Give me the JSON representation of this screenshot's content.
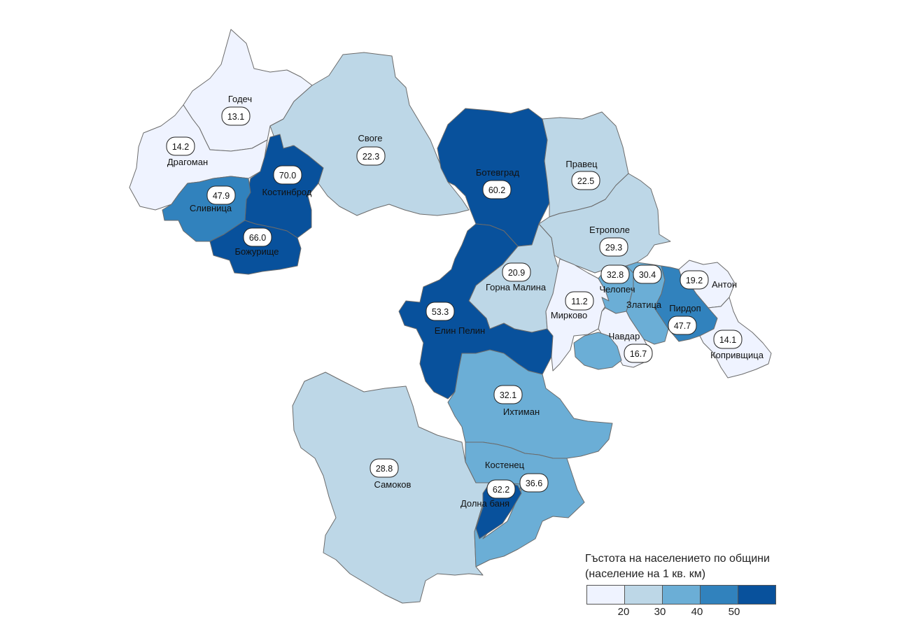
{
  "map": {
    "municipalities": [
      {
        "name": "Годеч",
        "value": "13.1"
      },
      {
        "name": "Драгоман",
        "value": "14.2"
      },
      {
        "name": "Своге",
        "value": "22.3"
      },
      {
        "name": "Костинброд",
        "value": "70.0"
      },
      {
        "name": "Сливница",
        "value": "47.9"
      },
      {
        "name": "Божурище",
        "value": "66.0"
      },
      {
        "name": "Ботевград",
        "value": "60.2"
      },
      {
        "name": "Правец",
        "value": "22.5"
      },
      {
        "name": "Етрополе",
        "value": "29.3"
      },
      {
        "name": "Горна Малина",
        "value": "20.9"
      },
      {
        "name": "Елин Пелин",
        "value": "53.3"
      },
      {
        "name": "Мирково",
        "value": "11.2"
      },
      {
        "name": "Челопеч",
        "value": "32.8"
      },
      {
        "name": "Златица",
        "value": "30.4"
      },
      {
        "name": "Антон",
        "value": "19.2"
      },
      {
        "name": "Пирдоп",
        "value": "47.7"
      },
      {
        "name": "Чавдар",
        "value": "16.7"
      },
      {
        "name": "Копривщица",
        "value": "14.1"
      },
      {
        "name": "Ихтиман",
        "value": "32.1"
      },
      {
        "name": "Самоков",
        "value": "28.8"
      },
      {
        "name": "Костенец",
        "value": "36.6"
      },
      {
        "name": "Долна баня",
        "value": "62.2"
      }
    ]
  },
  "legend": {
    "title_line1": "Гъстота на населението по общини",
    "title_line2": "(население на 1 кв. км)",
    "colors": [
      "#eff3ff",
      "#bdd7e7",
      "#6baed6",
      "#3182bd",
      "#08519c"
    ],
    "ticks": [
      "20",
      "30",
      "40",
      "50"
    ]
  }
}
